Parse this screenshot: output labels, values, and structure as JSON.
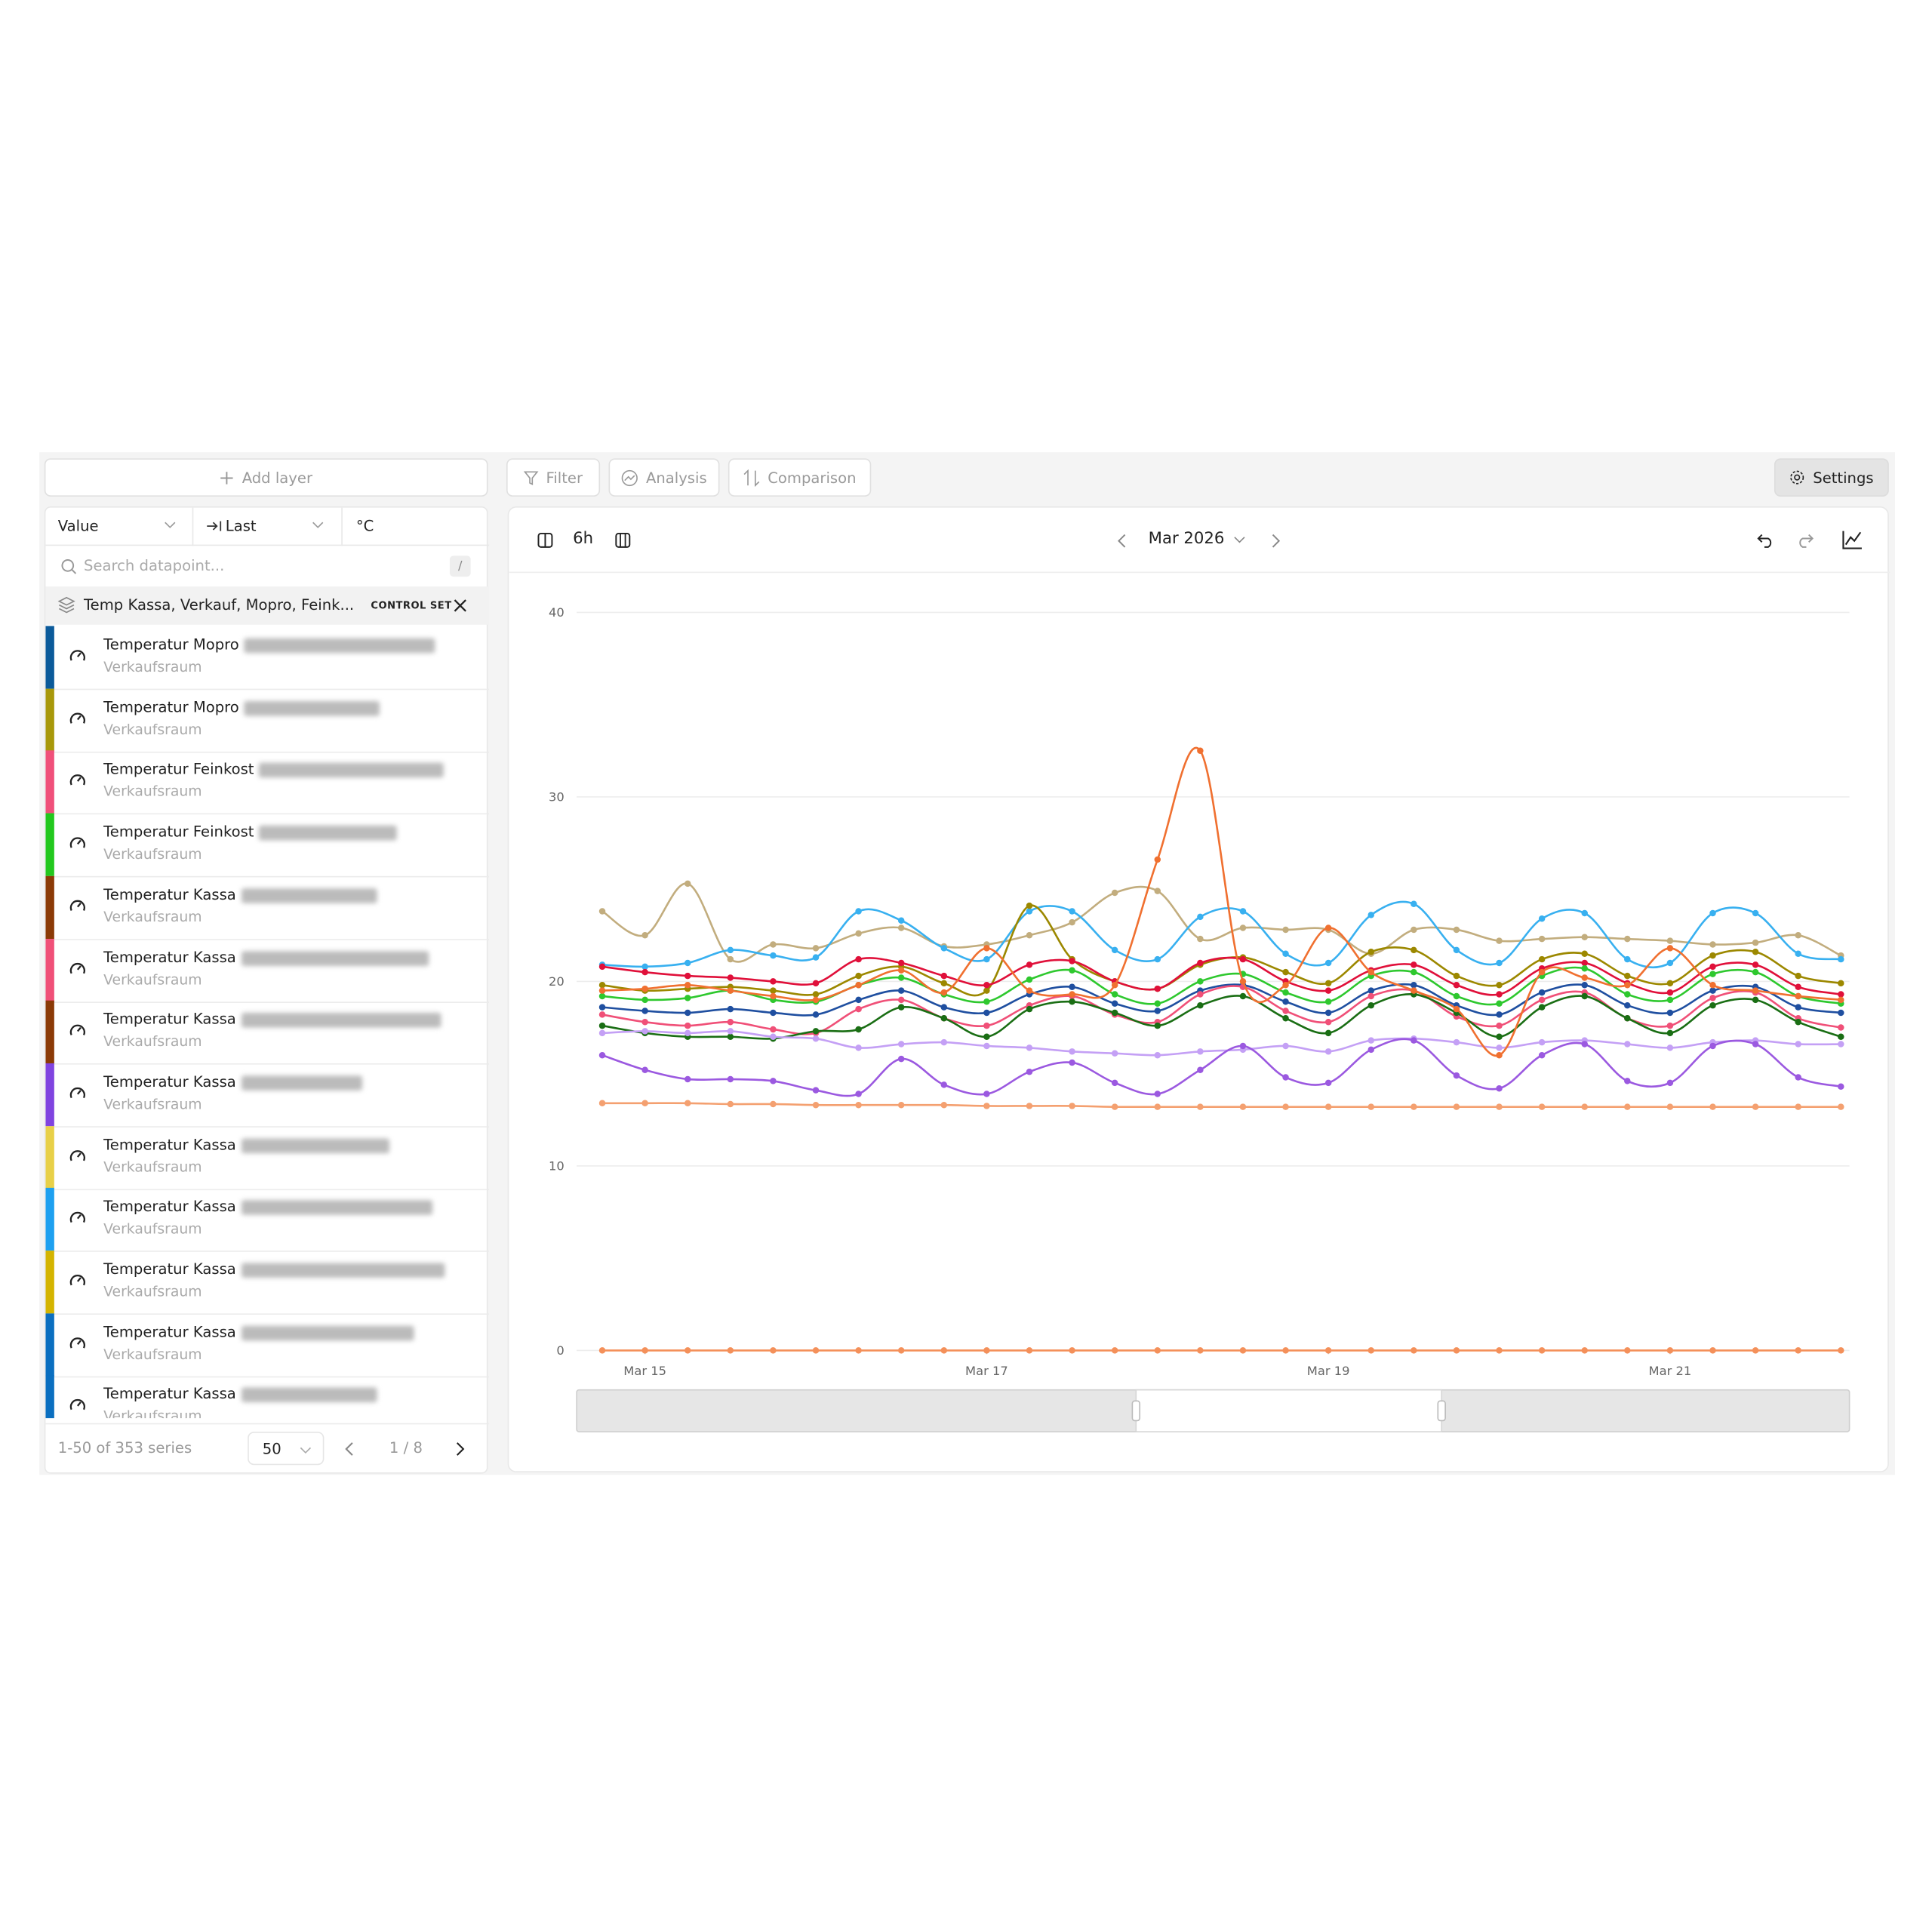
{
  "toolbar": {
    "add_layer": "Add layer",
    "filter": "Filter",
    "analysis": "Analysis",
    "comparison": "Comparison",
    "settings": "Settings"
  },
  "sidebar": {
    "columns": [
      "Value",
      "Last",
      "°C"
    ],
    "search_placeholder": "Search datapoint...",
    "search_shortcut": "/",
    "set": {
      "name": "Temp Kassa, Verkauf, Mopro, Feink...",
      "badge": "CONTROL SET"
    },
    "items": [
      {
        "name": "Temperatur Mopro",
        "location": "Verkaufsraum",
        "color": "#0b5a9a"
      },
      {
        "name": "Temperatur Mopro",
        "location": "Verkaufsraum",
        "color": "#a8980a"
      },
      {
        "name": "Temperatur Feinkost",
        "location": "Verkaufsraum",
        "color": "#f0507a"
      },
      {
        "name": "Temperatur Feinkost",
        "location": "Verkaufsraum",
        "color": "#22c81e"
      },
      {
        "name": "Temperatur Kassa",
        "location": "Verkaufsraum",
        "color": "#8b3a06"
      },
      {
        "name": "Temperatur Kassa",
        "location": "Verkaufsraum",
        "color": "#f05078"
      },
      {
        "name": "Temperatur Kassa",
        "location": "Verkaufsraum",
        "color": "#8b3a06"
      },
      {
        "name": "Temperatur Kassa",
        "location": "Verkaufsraum",
        "color": "#8044e0"
      },
      {
        "name": "Temperatur Kassa",
        "location": "Verkaufsraum",
        "color": "#e8d048"
      },
      {
        "name": "Temperatur Kassa",
        "location": "Verkaufsraum",
        "color": "#1ea0f0"
      },
      {
        "name": "Temperatur Kassa",
        "location": "Verkaufsraum",
        "color": "#d4b400"
      },
      {
        "name": "Temperatur Kassa",
        "location": "Verkaufsraum",
        "color": "#0b6fc0"
      },
      {
        "name": "Temperatur Kassa",
        "location": "Verkaufsraum",
        "color": "#0b6fc0"
      }
    ],
    "footer": {
      "range": "1-50 of 353 series",
      "page_size": "50",
      "page": "1 / 8"
    }
  },
  "chart_header": {
    "interval": "6h",
    "period": "Mar 2026"
  },
  "chart_data": {
    "type": "line",
    "x": [
      14.75,
      15,
      15.25,
      15.5,
      15.75,
      16,
      16.25,
      16.5,
      16.75,
      17,
      17.25,
      17.5,
      17.75,
      18,
      18.25,
      18.5,
      18.75,
      19,
      19.25,
      19.5,
      19.75,
      20,
      20.25,
      20.5,
      20.75,
      21,
      21.25,
      21.5,
      21.75,
      22
    ],
    "xlim": [
      14.6,
      22.05
    ],
    "xticks": [
      {
        "value": 15,
        "label": "Mar 15"
      },
      {
        "value": 17,
        "label": "Mar 17"
      },
      {
        "value": 19,
        "label": "Mar 19"
      },
      {
        "value": 21,
        "label": "Mar 21"
      }
    ],
    "ylim": [
      0,
      40
    ],
    "yticks": [
      0,
      10,
      20,
      30,
      40
    ],
    "grid": true,
    "series": [
      {
        "color": "#c2ad7e",
        "values": [
          23.8,
          22.5,
          25.3,
          21.2,
          22,
          21.8,
          22.6,
          22.9,
          21.9,
          22,
          22.5,
          23.2,
          24.8,
          24.9,
          22.3,
          22.9,
          22.8,
          22.8,
          21.5,
          22.8,
          22.8,
          22.2,
          22.3,
          22.4,
          22.3,
          22.2,
          22,
          22.1,
          22.5,
          21.4
        ]
      },
      {
        "color": "#38b0f0",
        "values": [
          20.9,
          20.8,
          21,
          21.7,
          21.4,
          21.3,
          23.8,
          23.3,
          21.8,
          21.2,
          23.8,
          23.8,
          21.7,
          21.2,
          23.5,
          23.8,
          21.5,
          21,
          23.6,
          24.2,
          21.7,
          21,
          23.4,
          23.7,
          21.2,
          21,
          23.7,
          23.7,
          21.5,
          21.2
        ]
      },
      {
        "color": "#9c8800",
        "values": [
          19.8,
          19.5,
          19.6,
          19.7,
          19.5,
          19.3,
          20.3,
          20.8,
          19.9,
          19.5,
          24.1,
          21.2,
          20,
          19.6,
          20.9,
          21.3,
          20.5,
          19.9,
          21.6,
          21.7,
          20.3,
          19.8,
          21.2,
          21.5,
          20.3,
          19.9,
          21.4,
          21.6,
          20.3,
          19.9
        ]
      },
      {
        "color": "#e0103a",
        "values": [
          20.8,
          20.5,
          20.3,
          20.2,
          20,
          19.9,
          21.2,
          21,
          20.3,
          19.8,
          20.9,
          21.1,
          20,
          19.6,
          21,
          21.2,
          20,
          19.5,
          20.6,
          20.9,
          19.8,
          19.3,
          20.7,
          21,
          19.9,
          19.4,
          20.8,
          20.9,
          19.7,
          19.3
        ]
      },
      {
        "color": "#2ec82e",
        "values": [
          19.2,
          19,
          19.1,
          19.5,
          19,
          18.9,
          19.8,
          20.2,
          19.3,
          18.9,
          20.1,
          20.6,
          19.3,
          18.8,
          20,
          20.4,
          19.4,
          18.9,
          20.3,
          20.5,
          19.2,
          18.8,
          20.3,
          20.7,
          19.3,
          19,
          20.4,
          20.5,
          19.2,
          18.8
        ]
      },
      {
        "color": "#1f4fa0",
        "values": [
          18.6,
          18.4,
          18.3,
          18.5,
          18.3,
          18.2,
          19,
          19.5,
          18.6,
          18.3,
          19.3,
          19.7,
          18.8,
          18.4,
          19.5,
          19.8,
          18.9,
          18.3,
          19.5,
          19.8,
          18.7,
          18.2,
          19.4,
          19.8,
          18.7,
          18.3,
          19.5,
          19.7,
          18.6,
          18.3
        ]
      },
      {
        "color": "#f05078",
        "values": [
          18.2,
          17.8,
          17.6,
          17.8,
          17.4,
          17.2,
          18.5,
          19,
          18,
          17.6,
          18.7,
          19.2,
          18.2,
          17.8,
          19.3,
          19.7,
          18.4,
          17.8,
          19.2,
          19.5,
          18.1,
          17.6,
          19,
          19.4,
          18,
          17.6,
          19.1,
          19.4,
          18,
          17.5
        ]
      },
      {
        "color": "#1a6e14",
        "values": [
          17.6,
          17.2,
          17,
          17,
          16.9,
          17.3,
          17.4,
          18.6,
          18,
          17,
          18.5,
          18.9,
          18.3,
          17.6,
          18.7,
          19.2,
          18,
          17.2,
          18.7,
          19.3,
          18.3,
          17,
          18.6,
          19.2,
          18,
          17.2,
          18.7,
          19,
          17.8,
          17
        ]
      },
      {
        "color": "#c4a0f5",
        "values": [
          17.2,
          17.3,
          17.2,
          17.3,
          17,
          16.9,
          16.4,
          16.6,
          16.7,
          16.5,
          16.4,
          16.2,
          16.1,
          16,
          16.2,
          16.3,
          16.5,
          16.2,
          16.8,
          16.9,
          16.7,
          16.4,
          16.7,
          16.8,
          16.6,
          16.4,
          16.7,
          16.8,
          16.6,
          16.6
        ]
      },
      {
        "color": "#f07030",
        "values": [
          19.5,
          19.6,
          19.8,
          19.5,
          19.2,
          19,
          19.8,
          20.6,
          19.4,
          21.8,
          19.5,
          19.3,
          19.8,
          26.6,
          32.5,
          20,
          19.8,
          22.9,
          20.5,
          19.5,
          18.5,
          16,
          20.5,
          20.2,
          19.8,
          21.8,
          19.8,
          19.5,
          19.2,
          19
        ]
      },
      {
        "color": "#9b59e0",
        "values": [
          16,
          15.2,
          14.7,
          14.7,
          14.6,
          14.1,
          13.9,
          15.8,
          14.4,
          13.9,
          15.1,
          15.6,
          14.5,
          13.9,
          15.2,
          16.5,
          14.8,
          14.5,
          16.3,
          16.8,
          14.9,
          14.2,
          16,
          16.6,
          14.6,
          14.5,
          16.5,
          16.6,
          14.8,
          14.3
        ]
      },
      {
        "color": "#f4a070",
        "values": [
          13.4,
          13.4,
          13.4,
          13.35,
          13.35,
          13.3,
          13.3,
          13.3,
          13.3,
          13.25,
          13.25,
          13.25,
          13.2,
          13.2,
          13.2,
          13.2,
          13.2,
          13.2,
          13.2,
          13.2,
          13.2,
          13.2,
          13.2,
          13.2,
          13.2,
          13.2,
          13.2,
          13.2,
          13.2,
          13.2
        ]
      },
      {
        "color": "#f4905a",
        "values": [
          0,
          0,
          0,
          0,
          0,
          0,
          0,
          0,
          0,
          0,
          0,
          0,
          0,
          0,
          0,
          0,
          0,
          0,
          0,
          0,
          0,
          0,
          0,
          0,
          0,
          0,
          0,
          0,
          0,
          0
        ]
      }
    ]
  }
}
